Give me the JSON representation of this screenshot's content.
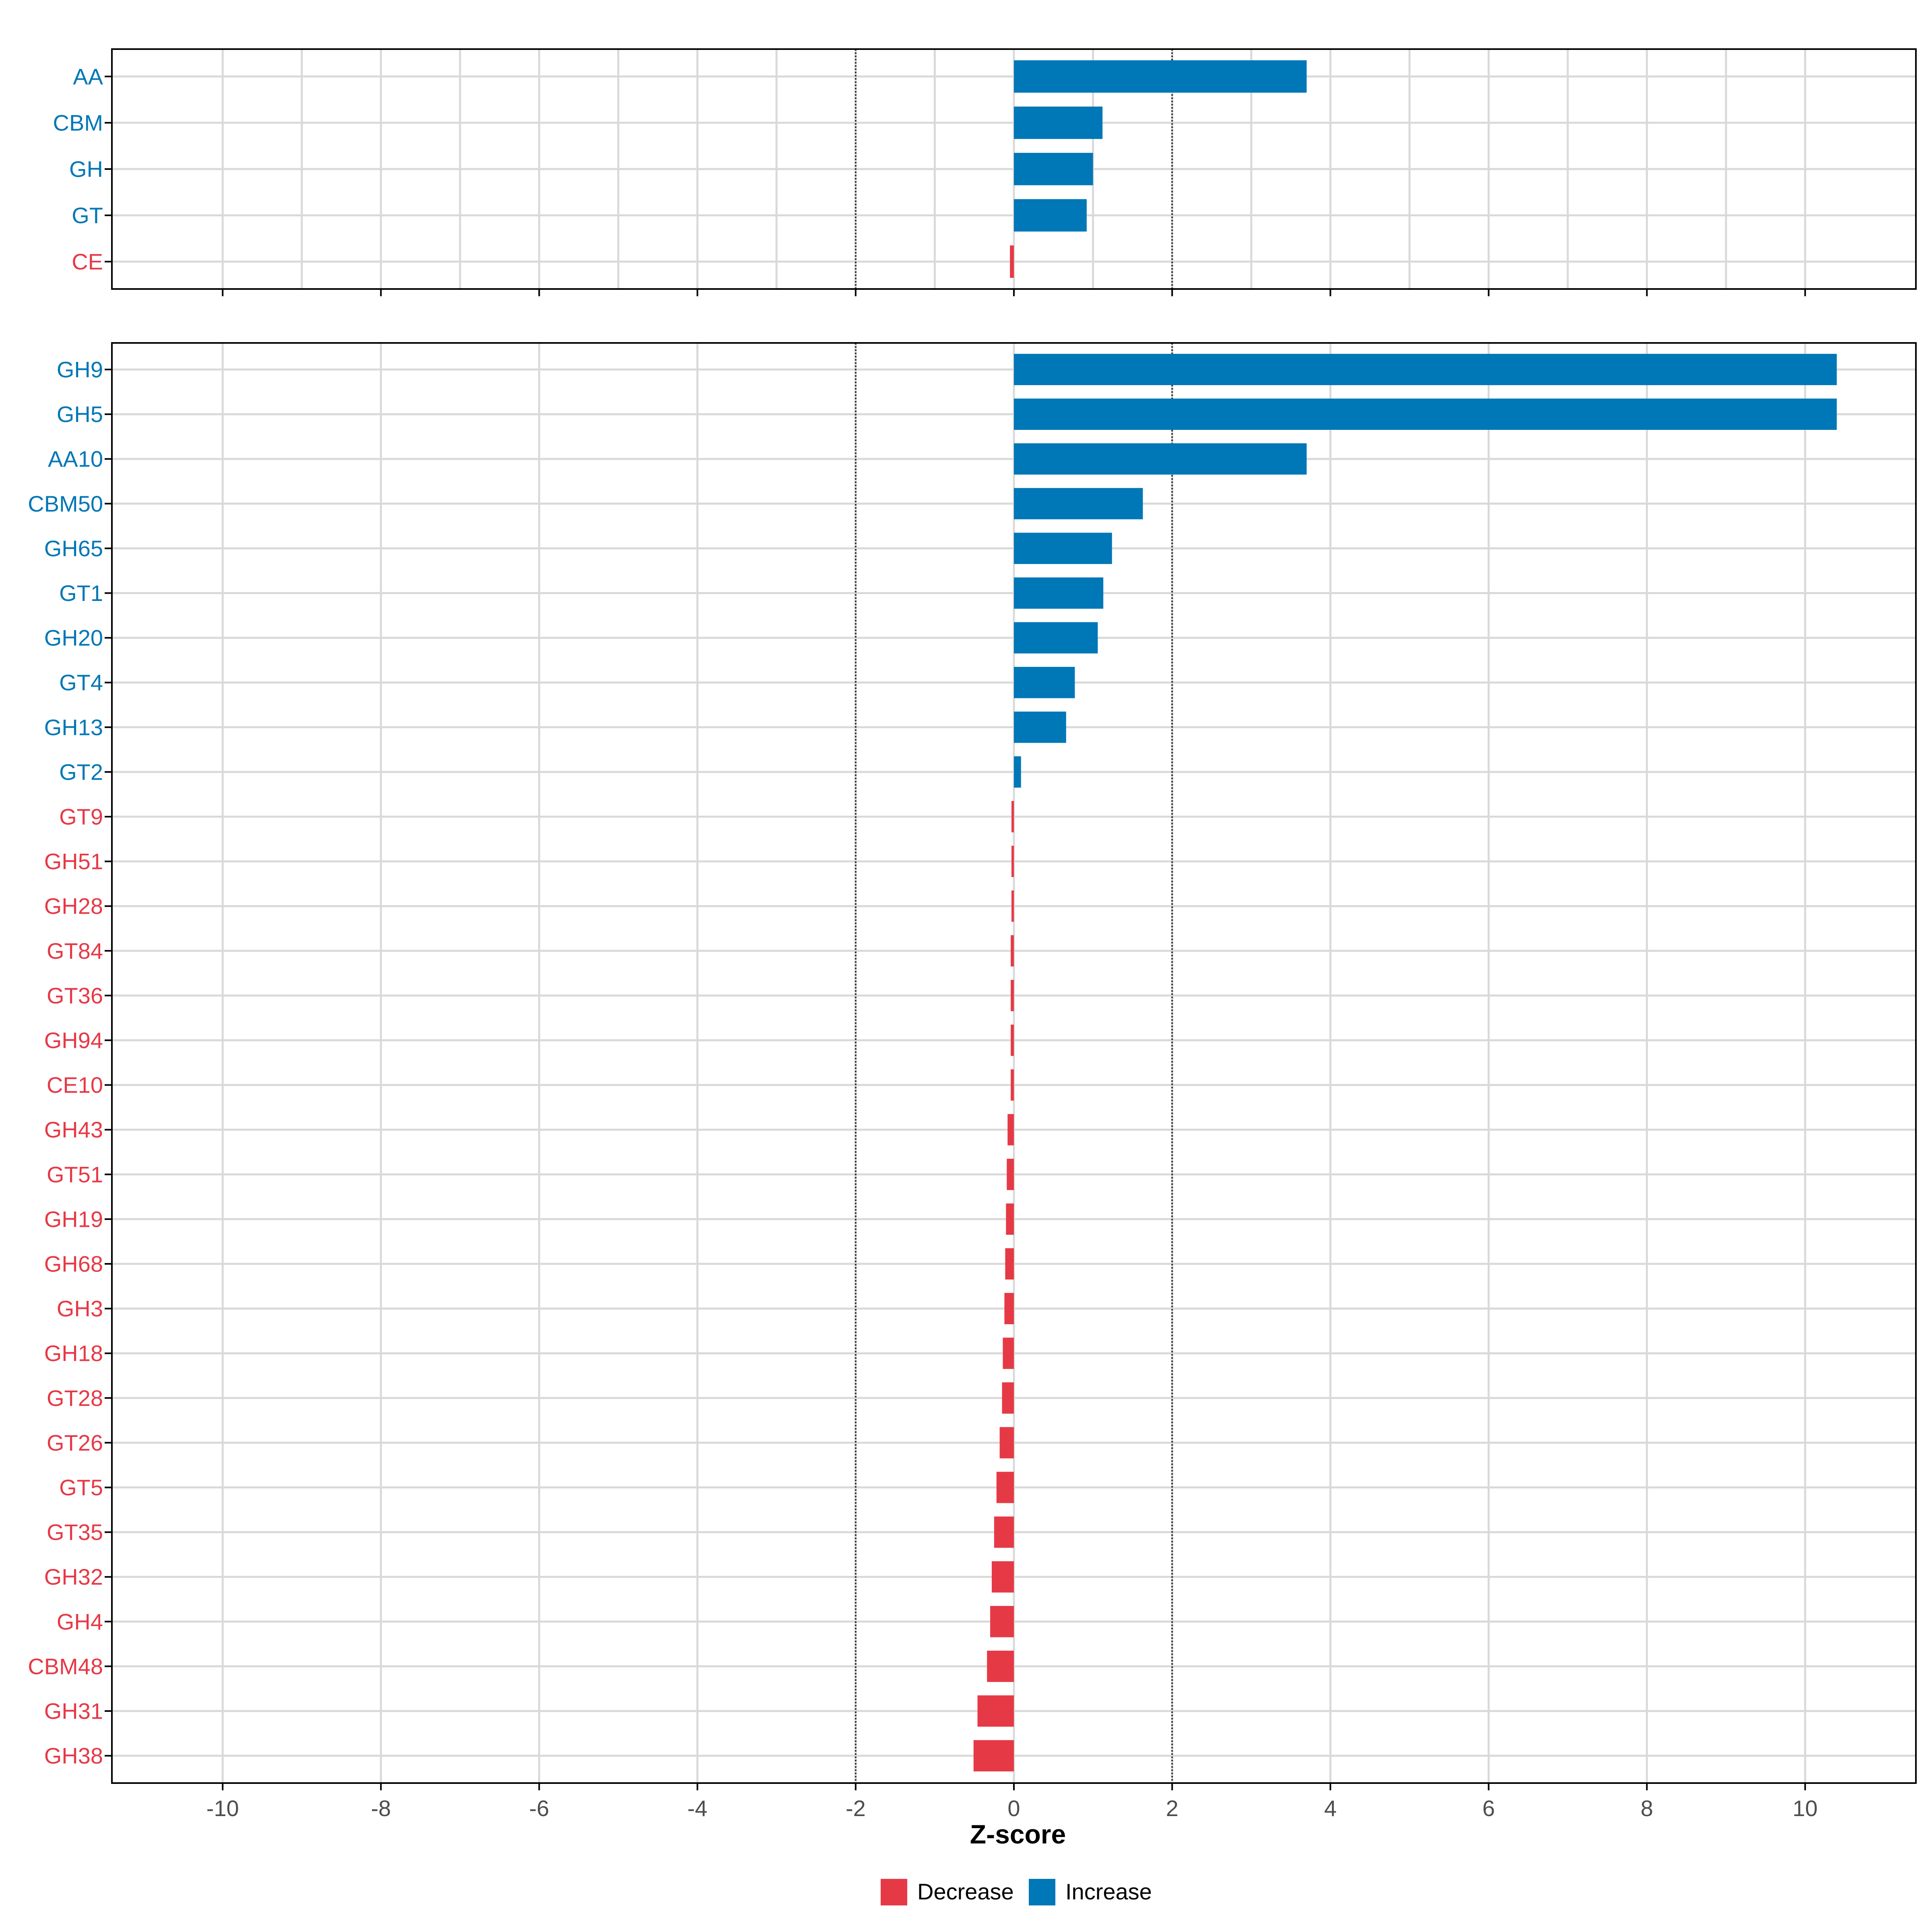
{
  "colors": {
    "increase": "#0077B6",
    "decrease": "#E63946",
    "grid": "#D9D9D9",
    "ref_line": "#333333",
    "axis": "#000000",
    "tick_label": "#4D4D4D"
  },
  "chart_data": [
    {
      "type": "bar",
      "orientation": "horizontal",
      "panel": "class",
      "xlim": [
        -11.4,
        11.4
      ],
      "x_ticks": [
        -10,
        -9,
        -8,
        -7,
        -6,
        -5,
        -4,
        -3,
        -2,
        -1,
        0,
        1,
        2,
        3,
        4,
        5,
        6,
        7,
        8,
        9,
        10
      ],
      "reference_lines": [
        -2,
        2
      ],
      "categories": [
        "AA",
        "CBM",
        "GH",
        "GT",
        "CE"
      ],
      "values": [
        3.7,
        1.12,
        1.0,
        0.92,
        -0.05
      ],
      "directions": [
        "Increase",
        "Increase",
        "Increase",
        "Increase",
        "Decrease"
      ]
    },
    {
      "type": "bar",
      "orientation": "horizontal",
      "panel": "family",
      "xlim": [
        -11.4,
        11.4
      ],
      "x_ticks": [
        -10,
        -8,
        -6,
        -4,
        -2,
        0,
        2,
        4,
        6,
        8,
        10
      ],
      "x_tick_labels": [
        "-10",
        "-8",
        "-6",
        "-4",
        "-2",
        "0",
        "2",
        "4",
        "6",
        "8",
        "10"
      ],
      "reference_lines": [
        -2,
        2
      ],
      "xlabel": "Z-score",
      "categories": [
        "GH9",
        "GH5",
        "AA10",
        "CBM50",
        "GH65",
        "GT1",
        "GH20",
        "GT4",
        "GH13",
        "GT2",
        "GT9",
        "GH51",
        "GH28",
        "GT84",
        "GT36",
        "GH94",
        "CE10",
        "GH43",
        "GT51",
        "GH19",
        "GH68",
        "GH3",
        "GH18",
        "GT28",
        "GT26",
        "GT5",
        "GT35",
        "GH32",
        "GH4",
        "CBM48",
        "GH31",
        "GH38"
      ],
      "values": [
        10.4,
        10.4,
        3.7,
        1.63,
        1.24,
        1.13,
        1.06,
        0.77,
        0.66,
        0.09,
        -0.03,
        -0.03,
        -0.03,
        -0.04,
        -0.04,
        -0.04,
        -0.04,
        -0.08,
        -0.09,
        -0.1,
        -0.11,
        -0.12,
        -0.14,
        -0.15,
        -0.18,
        -0.22,
        -0.25,
        -0.28,
        -0.3,
        -0.34,
        -0.46,
        -0.51
      ],
      "directions": [
        "Increase",
        "Increase",
        "Increase",
        "Increase",
        "Increase",
        "Increase",
        "Increase",
        "Increase",
        "Increase",
        "Increase",
        "Decrease",
        "Decrease",
        "Decrease",
        "Decrease",
        "Decrease",
        "Decrease",
        "Decrease",
        "Decrease",
        "Decrease",
        "Decrease",
        "Decrease",
        "Decrease",
        "Decrease",
        "Decrease",
        "Decrease",
        "Decrease",
        "Decrease",
        "Decrease",
        "Decrease",
        "Decrease",
        "Decrease",
        "Decrease"
      ]
    }
  ],
  "legend": {
    "items": [
      {
        "label": "Decrease",
        "key": "decrease"
      },
      {
        "label": "Increase",
        "key": "increase"
      }
    ]
  }
}
